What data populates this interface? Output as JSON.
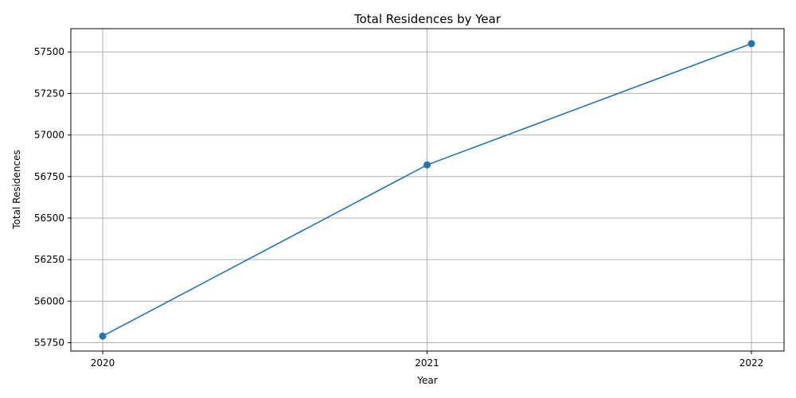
{
  "chart_data": {
    "type": "line",
    "title": "Total Residences by Year",
    "xlabel": "Year",
    "ylabel": "Total Residences",
    "categories": [
      "2020",
      "2021",
      "2022"
    ],
    "series": [
      {
        "values": [
          55790,
          56820,
          57550
        ],
        "color": "#1f77b4"
      }
    ],
    "yticks": [
      55750,
      56000,
      56250,
      56500,
      56750,
      57000,
      57250,
      57500
    ],
    "ylim": [
      55700,
      57640
    ],
    "grid": true
  }
}
